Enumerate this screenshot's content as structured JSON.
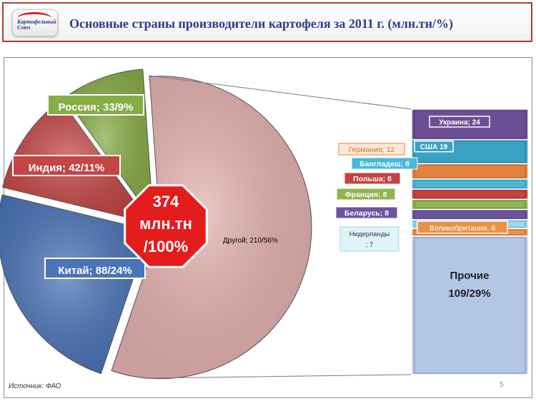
{
  "header": {
    "logo_text": "Картофельный Союз",
    "title": "Основные страны производители картофеля за 2011 г. (млн.тн/%)"
  },
  "footer": {
    "source": "Источник: ФАО",
    "page_number": "5"
  },
  "colors": {
    "china": "#4a74b8",
    "india": "#c44545",
    "russia": "#86ad46",
    "other": "#e6b3b1",
    "badge": "#e41c1c",
    "ukraine": "#6c4e96",
    "usa": "#3aa1c3",
    "germany": "#e2823e",
    "bangladesh": "#48b9d9",
    "poland": "#c84040",
    "france": "#8fb552",
    "belarus": "#6b569e",
    "netherlands": "#9ad8ee",
    "uk": "#e99245",
    "rest": "#b4c6e6"
  },
  "chart_data": [
    {
      "type": "pie",
      "total_badge": [
        "374",
        "млн.тн",
        "/100%"
      ],
      "slices": [
        {
          "name": "Другой",
          "value": 210,
          "percent": 56,
          "label": "Другой; 210/56%"
        },
        {
          "name": "Китай",
          "value": 88,
          "percent": 24,
          "label": "Китай; 88/24%"
        },
        {
          "name": "Индия",
          "value": 42,
          "percent": 11,
          "label": "Индия; 42/11%"
        },
        {
          "name": "Россия",
          "value": 33,
          "percent": 9,
          "label": "Россия; 33/9%"
        }
      ]
    },
    {
      "type": "bar",
      "stacked": true,
      "items": [
        {
          "name": "Украина",
          "value": 24,
          "label": "Украина; 24"
        },
        {
          "name": "США",
          "value": 19,
          "label": "США 19"
        },
        {
          "name": "Германия",
          "value": 12,
          "label": "Германия; 12"
        },
        {
          "name": "Бангладеш",
          "value": 8,
          "label": "Бангладеш; 8"
        },
        {
          "name": "Польша",
          "value": 8,
          "label": "Польша; 8"
        },
        {
          "name": "Франция",
          "value": 8,
          "label": "Франция; 8"
        },
        {
          "name": "Беларусь",
          "value": 8,
          "label": "Беларусь; 8"
        },
        {
          "name": "Нидерланды",
          "value": 7,
          "label_lines": [
            "Нидерланды",
            "; 7"
          ]
        },
        {
          "name": "Великобритания",
          "value": 6,
          "label": "Великобритания, 6"
        },
        {
          "name": "Прочие",
          "value": 109,
          "label_lines": [
            "Прочие",
            "109/29%"
          ]
        }
      ]
    }
  ]
}
